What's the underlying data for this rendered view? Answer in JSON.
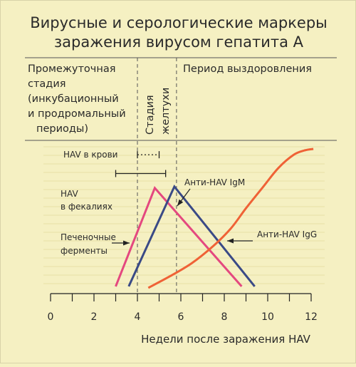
{
  "chart_data": {
    "type": "line",
    "title": [
      "Вирусные и серологические маркеры",
      "заражения вирусом гепатита А"
    ],
    "phases": {
      "incubation": [
        "Промежуточная",
        "стадия",
        "(инкубационный",
        "и продромальный",
        "периоды)"
      ],
      "jaundice": [
        "Стадия",
        "желтухи"
      ],
      "recovery": "Период выздоровления"
    },
    "xlabel": "Недели после заражения HAV",
    "xlim": [
      0,
      12
    ],
    "xticks": [
      0,
      2,
      4,
      6,
      8,
      10,
      12
    ],
    "ylim": [
      0,
      1
    ],
    "jaundice_bounds": [
      4,
      5.8
    ],
    "colors": {
      "pink": "#e4487f",
      "navy": "#3a4a86",
      "orange": "#ef6236",
      "black": "#222222"
    },
    "series": [
      {
        "name": "Печеночные ферменты",
        "label": [
          "Печеночные",
          "ферменты"
        ],
        "color": "#e4487f",
        "x": [
          3,
          4.8,
          8.8
        ],
        "y": [
          0.05,
          0.73,
          0.05
        ]
      },
      {
        "name": "Анти-HAV IgM",
        "label": [
          "Анти-HAV IgM"
        ],
        "color": "#3a4a86",
        "x": [
          3.6,
          5.7,
          9.4
        ],
        "y": [
          0.05,
          0.74,
          0.05
        ]
      },
      {
        "name": "Анти-HAV IgG",
        "label": [
          "Анти-HAV IgG"
        ],
        "color": "#ef6236",
        "x": [
          4.5,
          5.5,
          6.5,
          7.5,
          8.3,
          9,
          9.8,
          10.5,
          11.2,
          11.7,
          12.1
        ],
        "y": [
          0.04,
          0.12,
          0.21,
          0.33,
          0.45,
          0.59,
          0.74,
          0.87,
          0.96,
          0.99,
          1.0
        ]
      }
    ],
    "ranges": [
      {
        "name": "HAV в крови",
        "label": [
          "HAV в крови"
        ],
        "from": 4,
        "to": 5,
        "y": 0.96,
        "style": "dotted"
      },
      {
        "name": "HAV в фекалиях",
        "label": [
          "HAV",
          "в фекалиях"
        ],
        "from": 3,
        "to": 5.3,
        "y": 0.83,
        "style": "solid"
      }
    ]
  }
}
